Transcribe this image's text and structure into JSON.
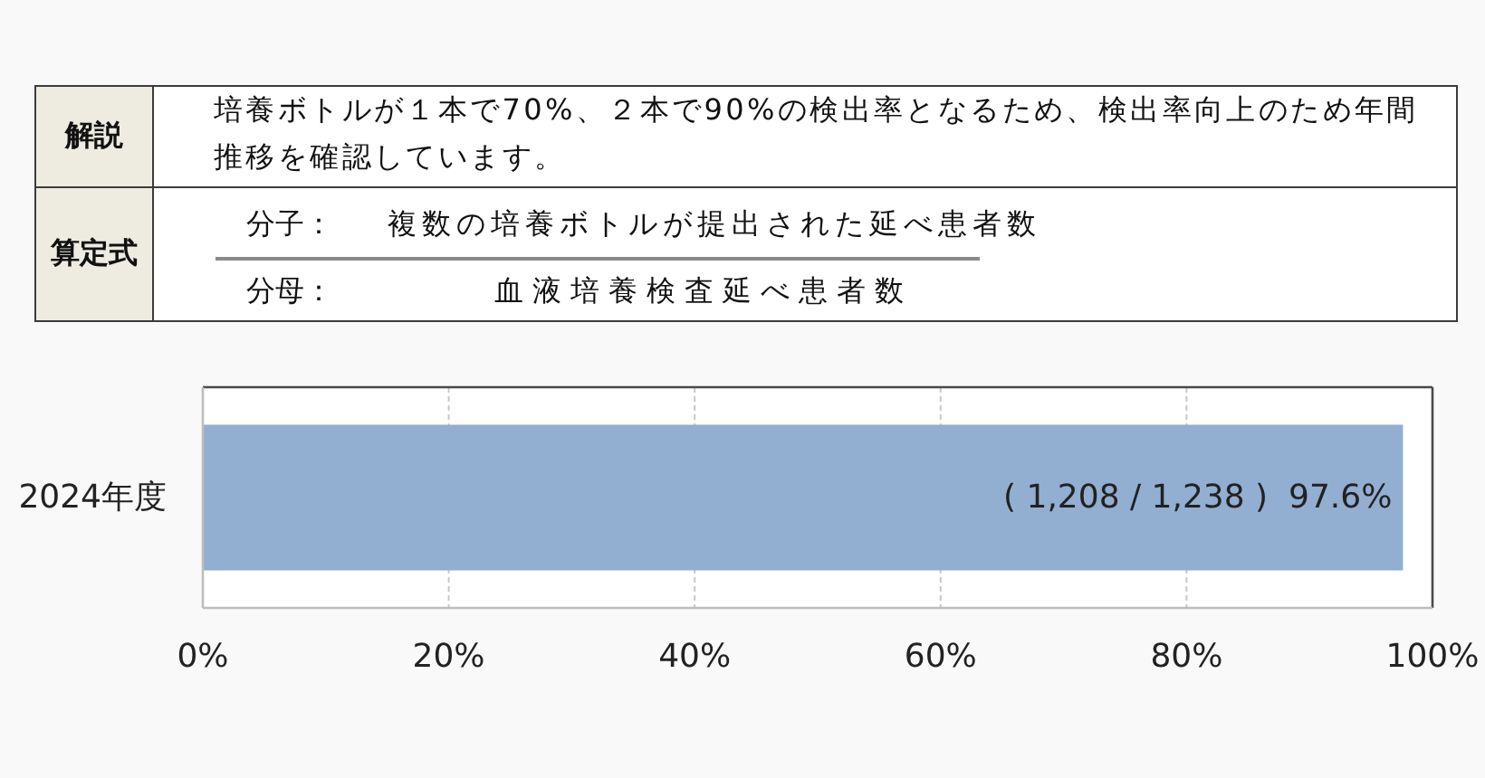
{
  "chart_data": {
    "type": "bar",
    "orientation": "horizontal",
    "categories": [
      "2024年度"
    ],
    "values": [
      97.6
    ],
    "color": "#92afd2",
    "value_labels": [
      "( 1,208 / 1,238 )  97.6%"
    ],
    "xlim": [
      0,
      100
    ],
    "xticks": [
      {
        "value": 0,
        "label": "0%"
      },
      {
        "value": 20,
        "label": "20%"
      },
      {
        "value": 40,
        "label": "40%"
      },
      {
        "value": 60,
        "label": "60%"
      },
      {
        "value": 80,
        "label": "80%"
      },
      {
        "value": 100,
        "label": "100%"
      }
    ],
    "grid": "x",
    "annotations": [
      "解説",
      "培養ボトルが１本で70%、２本で90%の検出率となるため、検出率向上のため年間推移を確認しています。",
      "算定式",
      "分子：",
      "複数の培養ボトルが提出された延べ患者数",
      "分母：",
      "血液培養検査延べ患者数"
    ]
  }
}
